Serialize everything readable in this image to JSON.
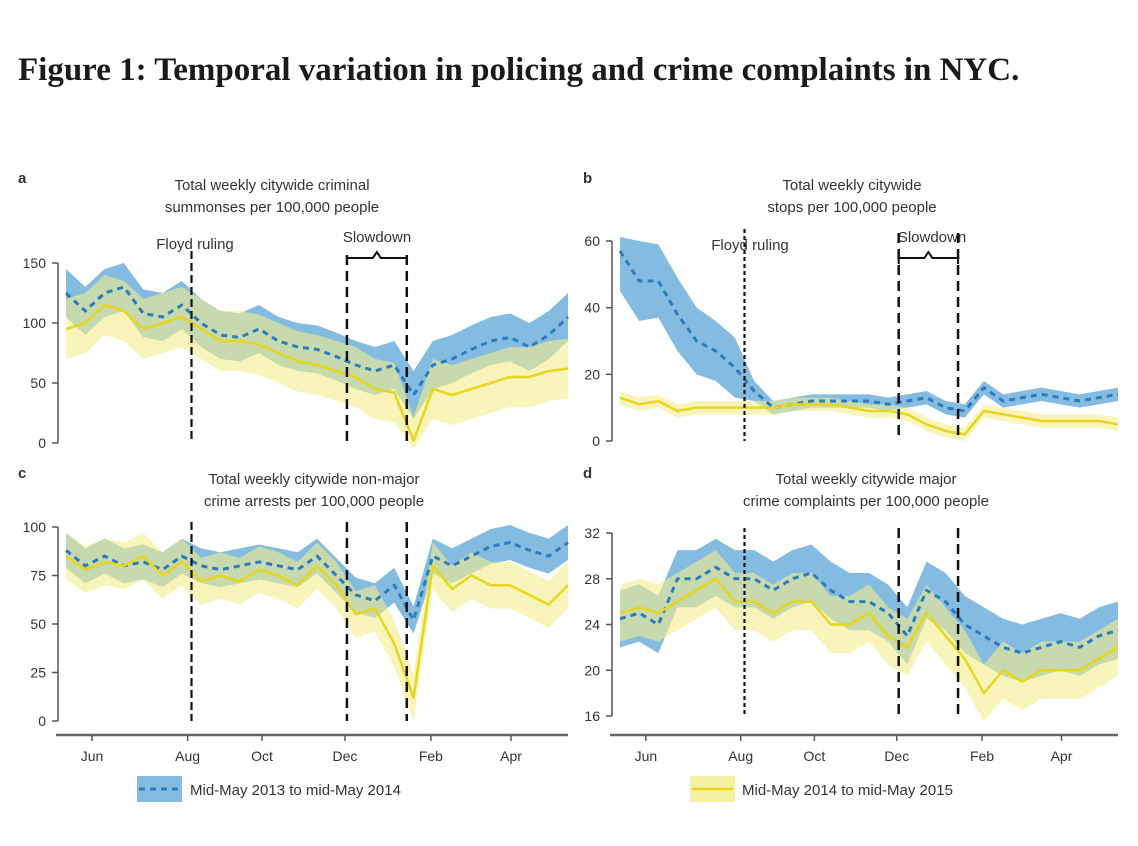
{
  "figure_title": "Figure 1: Temporal variation in policing and crime complaints in NYC.",
  "colors": {
    "series_2013": "#2b7bbd",
    "band_2013": "#6fb0dc",
    "series_2014": "#e6d61e",
    "band_2014": "#f4ec8c"
  },
  "legend": [
    {
      "label": "Mid-May 2013 to mid-May 2014",
      "style": "dashed-blue-with-blue-band"
    },
    {
      "label": "Mid-May 2014 to mid-May 2015",
      "style": "solid-yellow-with-yellow-band"
    }
  ],
  "chart_data": [
    {
      "panel": "a",
      "type": "area",
      "title": [
        "Total weekly citywide criminal",
        "summonses per 100,000 people"
      ],
      "ylim": [
        0,
        150
      ],
      "yticks": [
        "0",
        "50",
        "100",
        "150"
      ],
      "xticks": [
        "Jun",
        "Aug",
        "Oct",
        "Dec",
        "Feb",
        "Apr"
      ],
      "annotations": {
        "floyd": "Floyd ruling",
        "slowdown": "Slowdown"
      },
      "series": [
        {
          "name": "Mid-May 2013 to mid-May 2014",
          "values": [
            125,
            110,
            125,
            130,
            108,
            105,
            115,
            100,
            90,
            88,
            95,
            85,
            80,
            78,
            72,
            65,
            60,
            65,
            40,
            65,
            70,
            78,
            85,
            88,
            80,
            90,
            105
          ],
          "band": [
            20,
            20,
            20,
            20,
            20,
            20,
            20,
            20,
            20,
            20,
            20,
            20,
            20,
            20,
            20,
            20,
            20,
            20,
            20,
            20,
            20,
            20,
            20,
            20,
            20,
            20,
            20
          ]
        },
        {
          "name": "Mid-May 2014 to mid-May 2015",
          "values": [
            95,
            100,
            115,
            110,
            95,
            100,
            105,
            95,
            85,
            85,
            82,
            75,
            68,
            65,
            60,
            55,
            45,
            42,
            2,
            45,
            40,
            45,
            50,
            55,
            55,
            60,
            62
          ],
          "band": [
            25,
            25,
            25,
            25,
            25,
            25,
            25,
            25,
            25,
            25,
            25,
            25,
            25,
            25,
            25,
            25,
            25,
            25,
            20,
            25,
            25,
            25,
            25,
            25,
            25,
            25,
            25
          ]
        }
      ]
    },
    {
      "panel": "b",
      "type": "area",
      "title": [
        "Total weekly citywide",
        "stops per 100,000 people"
      ],
      "ylim": [
        0,
        60
      ],
      "yticks": [
        "0",
        "20",
        "40",
        "60"
      ],
      "xticks": [
        "Jun",
        "Aug",
        "Oct",
        "Dec",
        "Feb",
        "Apr"
      ],
      "annotations": {
        "floyd": "Floyd ruling",
        "slowdown": "Slowdown"
      },
      "series": [
        {
          "name": "Mid-May 2013 to mid-May 2014",
          "values": [
            57,
            48,
            48,
            38,
            30,
            27,
            22,
            15,
            10,
            11,
            12,
            12,
            12,
            12,
            11,
            12,
            13,
            10,
            9,
            16,
            12,
            13,
            14,
            13,
            12,
            13,
            14
          ],
          "band": [
            12,
            12,
            11,
            11,
            10,
            9,
            9,
            3,
            2,
            2,
            2,
            2,
            2,
            2,
            2,
            2,
            2,
            2,
            2,
            2,
            2,
            2,
            2,
            2,
            2,
            2,
            2
          ]
        },
        {
          "name": "Mid-May 2014 to mid-May 2015",
          "values": [
            13,
            11,
            12,
            9,
            10,
            10,
            10,
            10,
            10,
            11,
            11,
            11,
            10,
            9,
            9,
            8,
            5,
            3,
            2,
            9,
            8,
            7,
            6,
            6,
            6,
            6,
            5
          ],
          "band": [
            2,
            2,
            2,
            2,
            2,
            2,
            2,
            2,
            2,
            2,
            2,
            2,
            2,
            2,
            2,
            2,
            2,
            2,
            2,
            2,
            2,
            2,
            2,
            2,
            2,
            2,
            2
          ]
        }
      ]
    },
    {
      "panel": "c",
      "type": "area",
      "title": [
        "Total weekly citywide non-major",
        "crime arrests per 100,000 people"
      ],
      "ylim": [
        0,
        100
      ],
      "yticks": [
        "0",
        "25",
        "50",
        "75",
        "100"
      ],
      "xticks": [
        "Jun",
        "Aug",
        "Oct",
        "Dec",
        "Feb",
        "Apr"
      ],
      "series": [
        {
          "name": "Mid-May 2013 to mid-May 2014",
          "values": [
            88,
            80,
            85,
            80,
            82,
            78,
            85,
            80,
            78,
            80,
            82,
            80,
            78,
            85,
            75,
            65,
            62,
            70,
            52,
            85,
            80,
            85,
            90,
            92,
            88,
            85,
            92
          ],
          "band": [
            9,
            9,
            9,
            9,
            9,
            9,
            9,
            9,
            9,
            9,
            9,
            9,
            9,
            9,
            9,
            9,
            9,
            9,
            7,
            9,
            9,
            9,
            9,
            9,
            9,
            9,
            9
          ]
        },
        {
          "name": "Mid-May 2014 to mid-May 2015",
          "values": [
            85,
            78,
            82,
            80,
            85,
            75,
            82,
            72,
            75,
            72,
            78,
            75,
            70,
            80,
            70,
            55,
            58,
            40,
            12,
            80,
            68,
            75,
            70,
            70,
            65,
            60,
            70
          ],
          "band": [
            12,
            12,
            12,
            12,
            12,
            12,
            12,
            12,
            12,
            12,
            12,
            12,
            12,
            12,
            12,
            12,
            12,
            12,
            12,
            12,
            12,
            12,
            12,
            12,
            12,
            12,
            12
          ]
        }
      ]
    },
    {
      "panel": "d",
      "type": "area",
      "title": [
        "Total weekly citywide major",
        "crime complaints per 100,000 people"
      ],
      "ylim": [
        16,
        32
      ],
      "yticks": [
        "16",
        "20",
        "24",
        "28",
        "32"
      ],
      "xticks": [
        "Jun",
        "Aug",
        "Oct",
        "Dec",
        "Feb",
        "Apr"
      ],
      "series": [
        {
          "name": "Mid-May 2013 to mid-May 2014",
          "values": [
            24.5,
            25,
            24,
            28,
            28,
            29,
            28,
            28,
            27,
            28,
            28.5,
            27,
            26,
            26,
            25,
            23,
            27,
            26,
            24,
            23,
            22,
            21.5,
            22,
            22.5,
            22,
            23,
            23.5
          ],
          "band": [
            2.5,
            2.5,
            2.5,
            2.5,
            2.5,
            2.5,
            2.5,
            2.5,
            2.5,
            2.5,
            2.5,
            2.5,
            2.5,
            2.5,
            2.5,
            2.5,
            2.5,
            2.5,
            2.5,
            2.5,
            2.5,
            2.5,
            2.5,
            2.5,
            2.5,
            2.5,
            2.5
          ]
        },
        {
          "name": "Mid-May 2014 to mid-May 2015",
          "values": [
            25,
            25.5,
            25,
            26,
            27,
            28,
            26,
            26,
            25,
            26,
            26,
            24,
            24,
            25,
            23,
            22,
            25,
            23,
            21,
            18,
            20,
            19,
            20,
            20,
            20,
            21,
            22
          ],
          "band": [
            2.5,
            2.5,
            2.5,
            2.5,
            2.5,
            2.5,
            2.5,
            2.5,
            2.5,
            2.5,
            2.5,
            2.5,
            2.5,
            2.5,
            2.5,
            2.5,
            2.5,
            2.5,
            2.5,
            2.5,
            2.5,
            2.5,
            2.5,
            2.5,
            2.5,
            2.5,
            2.5
          ]
        }
      ]
    }
  ]
}
